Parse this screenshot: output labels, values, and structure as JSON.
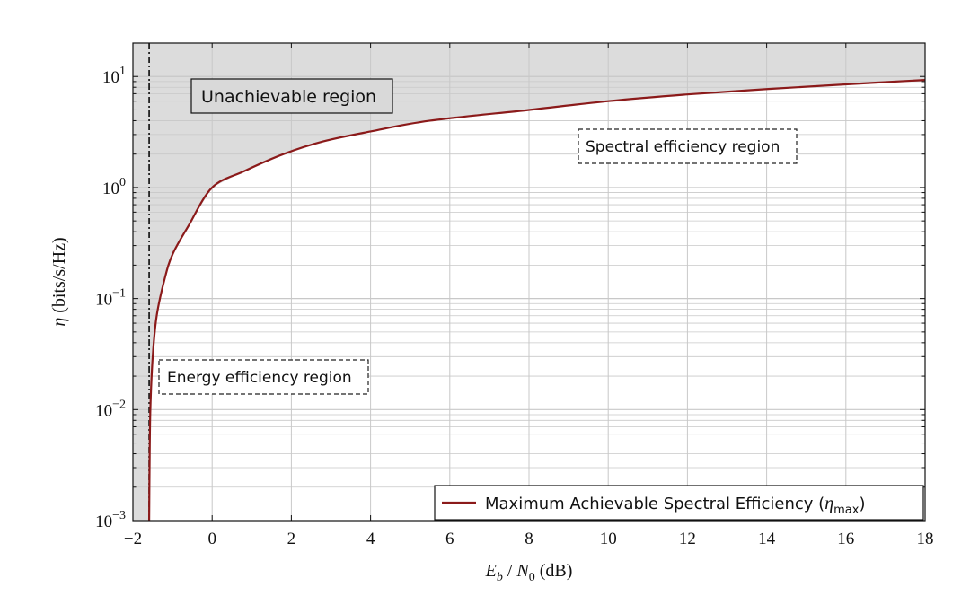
{
  "chart_data": {
    "type": "line",
    "xlabel": "E_b / N_0 (dB)",
    "ylabel": "η (bits/s/Hz)",
    "xlim": [
      -2,
      18
    ],
    "ylim": [
      0.001,
      20
    ],
    "yscale": "log",
    "grid": true,
    "x_ticks": [
      "−2",
      "0",
      "2",
      "4",
      "6",
      "8",
      "10",
      "12",
      "14",
      "16",
      "18"
    ],
    "y_ticks": [
      {
        "base": "10",
        "exp": "−3"
      },
      {
        "base": "10",
        "exp": "−2"
      },
      {
        "base": "10",
        "exp": "−1"
      },
      {
        "base": "10",
        "exp": "0"
      },
      {
        "base": "10",
        "exp": "1"
      }
    ],
    "shannon_limit_x": -1.59,
    "series": [
      {
        "name": "Maximum Achievable Spectral Efficiency (η_max)",
        "color": "#8b1a1a",
        "x": [
          -1.59,
          -1.58,
          -1.56,
          -1.5,
          -1.4,
          -1.2,
          -1.0,
          -0.6,
          0.0,
          0.8,
          1.8,
          2.8,
          4.0,
          5.5,
          8.0,
          10.0,
          12.0,
          14.0,
          16.0,
          18.0
        ],
        "y": [
          0.001,
          0.003,
          0.01,
          0.03,
          0.07,
          0.15,
          0.25,
          0.45,
          1.0,
          1.4,
          2.0,
          2.6,
          3.2,
          4.0,
          5.0,
          6.0,
          6.9,
          7.7,
          8.5,
          9.3
        ]
      }
    ],
    "legend_position": "bottom-right",
    "annotations": {
      "unachievable": "Unachievable region",
      "spectral": "Spectral efficiency region",
      "energy": "Energy efficiency region"
    },
    "colors": {
      "shade": "#dcdcdc",
      "grid": "#c8c8c8",
      "axis": "#111111",
      "limit_line": "#222222"
    }
  }
}
